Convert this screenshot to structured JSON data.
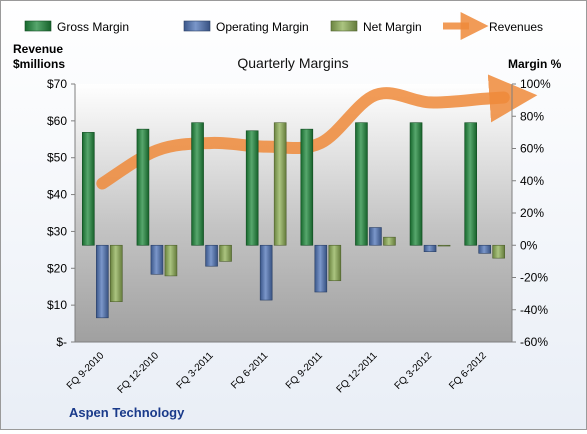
{
  "chart_data": {
    "type": "bar",
    "title": "Quarterly Margins",
    "subtitle": "Aspen Technology",
    "left_axis": {
      "label_lines": [
        "Revenue",
        "$millions"
      ],
      "range": [
        0,
        70
      ],
      "ticks": [
        0,
        10,
        20,
        30,
        40,
        50,
        60,
        70
      ],
      "tick_labels": [
        "$-",
        "$10",
        "$20",
        "$30",
        "$40",
        "$50",
        "$60",
        "$70"
      ]
    },
    "right_axis": {
      "label": "Margin %",
      "range": [
        -60,
        100
      ],
      "ticks": [
        -60,
        -40,
        -20,
        0,
        20,
        40,
        60,
        80,
        100
      ],
      "tick_labels": [
        "-60%",
        "-40%",
        "-20%",
        "0%",
        "20%",
        "40%",
        "60%",
        "80%",
        "100%"
      ]
    },
    "categories": [
      "FQ 9-2010",
      "FQ 12-2010",
      "FQ 3-2011",
      "FQ 6-2011",
      "FQ 9-2011",
      "FQ 12-2011",
      "FQ 3-2012",
      "FQ 6-2012"
    ],
    "series": [
      {
        "name": "Gross Margin",
        "axis": "right",
        "kind": "bar",
        "color": "#1f8a3c",
        "values": [
          70,
          72,
          76,
          71,
          72,
          76,
          76,
          76
        ]
      },
      {
        "name": "Operating Margin",
        "axis": "right",
        "kind": "bar",
        "color": "#4f74b8",
        "values": [
          -45,
          -18,
          -13,
          -34,
          -29,
          11,
          -4,
          -5
        ]
      },
      {
        "name": "Net Margin",
        "axis": "right",
        "kind": "bar",
        "color": "#8fb055",
        "values": [
          -35,
          -19,
          -10,
          76,
          -22,
          5,
          0,
          -8
        ]
      },
      {
        "name": "Revenues",
        "axis": "left",
        "kind": "line",
        "color": "#ee8a3a",
        "values": [
          43,
          52,
          54,
          53,
          54,
          67,
          65,
          66
        ]
      }
    ],
    "legend_position": "top",
    "grid": false
  }
}
